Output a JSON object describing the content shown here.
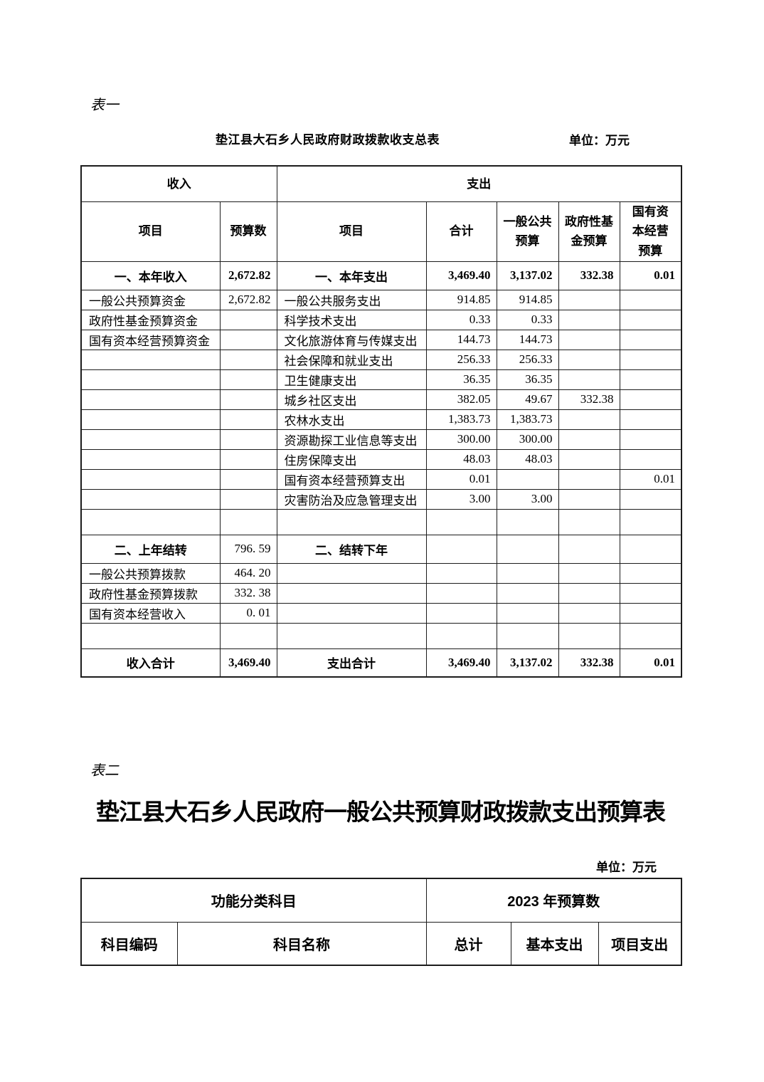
{
  "colors": {
    "background": "#ffffff",
    "text": "#000000",
    "table_border": "#1c1c1c"
  },
  "page": {
    "table1_label": "表一",
    "table2_label": "表二"
  },
  "table1": {
    "title": "垫江县大石乡人民政府财政拨款收支总表",
    "unit": "单位：万元",
    "header": {
      "income": "收入",
      "expenditure": "支出",
      "cols": [
        "项目",
        "预算数",
        "项目",
        "合计",
        "一般公共\n预算",
        "政府性基\n金预算",
        "国有资\n本经营\n预算"
      ]
    },
    "rows": [
      {
        "style": "total",
        "cells": [
          "一、本年收入",
          "2,672.82",
          "一、本年支出",
          "3,469.40",
          "3,137.02",
          "332.38",
          "0.01"
        ]
      },
      {
        "style": "data",
        "cells": [
          "一般公共预算资金",
          "2,672.82",
          "一般公共服务支出",
          "914.85",
          "914.85",
          "",
          ""
        ]
      },
      {
        "style": "data",
        "cells": [
          "政府性基金预算资金",
          "",
          "科学技术支出",
          "0.33",
          "0.33",
          "",
          ""
        ]
      },
      {
        "style": "data",
        "cells": [
          "国有资本经营预算资金",
          "",
          "文化旅游体育与传媒支出",
          "144.73",
          "144.73",
          "",
          ""
        ]
      },
      {
        "style": "data",
        "cells": [
          "",
          "",
          "社会保障和就业支出",
          "256.33",
          "256.33",
          "",
          ""
        ]
      },
      {
        "style": "data",
        "cells": [
          "",
          "",
          "卫生健康支出",
          "36.35",
          "36.35",
          "",
          ""
        ]
      },
      {
        "style": "data",
        "cells": [
          "",
          "",
          "城乡社区支出",
          "382.05",
          "49.67",
          "332.38",
          ""
        ]
      },
      {
        "style": "data",
        "cells": [
          "",
          "",
          "农林水支出",
          "1,383.73",
          "1,383.73",
          "",
          ""
        ]
      },
      {
        "style": "data",
        "cells": [
          "",
          "",
          "资源勘探工业信息等支出",
          "300.00",
          "300.00",
          "",
          ""
        ]
      },
      {
        "style": "data",
        "cells": [
          "",
          "",
          "住房保障支出",
          "48.03",
          "48.03",
          "",
          ""
        ]
      },
      {
        "style": "data",
        "cells": [
          "",
          "",
          "国有资本经营预算支出",
          "0.01",
          "",
          "",
          "0.01"
        ]
      },
      {
        "style": "data",
        "cells": [
          "",
          "",
          "灾害防治及应急管理支出",
          "3.00",
          "3.00",
          "",
          ""
        ]
      },
      {
        "style": "empty",
        "cells": [
          "",
          "",
          "",
          "",
          "",
          "",
          ""
        ]
      },
      {
        "style": "section",
        "cells": [
          "二、上年结转",
          "796. 59",
          "二、结转下年",
          "",
          "",
          "",
          ""
        ]
      },
      {
        "style": "data",
        "cells": [
          "一般公共预算拨款",
          "464. 20",
          "",
          "",
          "",
          "",
          ""
        ]
      },
      {
        "style": "data",
        "cells": [
          "政府性基金预算拨款",
          "332. 38",
          "",
          "",
          "",
          "",
          ""
        ]
      },
      {
        "style": "data",
        "cells": [
          "国有资本经营收入",
          "0. 01",
          "",
          "",
          "",
          "",
          ""
        ]
      },
      {
        "style": "empty",
        "cells": [
          "",
          "",
          "",
          "",
          "",
          "",
          ""
        ]
      },
      {
        "style": "total",
        "cells": [
          "收入合计",
          "3,469.40",
          "支出合计",
          "3,469.40",
          "3,137.02",
          "332.38",
          "0.01"
        ]
      }
    ]
  },
  "table2": {
    "title": "垫江县大石乡人民政府一般公共预算财政拨款支出预算表",
    "unit": "单位：万元",
    "header_row1": [
      "功能分类科目",
      "2023 年预算数"
    ],
    "header_row2": [
      "科目编码",
      "科目名称",
      "总计",
      "基本支出",
      "项目支出"
    ]
  }
}
